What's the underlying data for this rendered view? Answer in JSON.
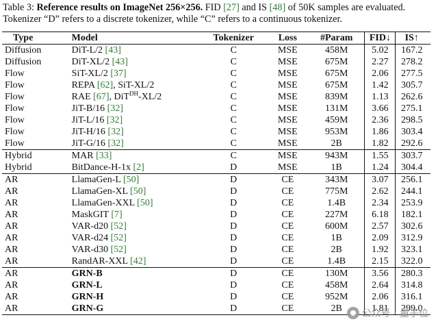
{
  "caption": {
    "label": "Table 3:",
    "bold_title": "Reference results on ImageNet 256×256.",
    "text_1": " FID ",
    "ref_fid": "[27]",
    "text_2": " and IS ",
    "ref_is": "[48]",
    "text_3": " of 50K samples are evaluated. Tokenizer “D” refers to a discrete tokenizer, while “C” refers to a continuous tokenizer."
  },
  "table": {
    "headers": {
      "type": "Type",
      "model": "Model",
      "tokenizer": "Tokenizer",
      "loss": "Loss",
      "param": "#Param",
      "fid": "FID↓",
      "is": "IS↑"
    },
    "rows": [
      {
        "type": "Diffusion",
        "model": "DiT-L/2 ",
        "ref": "[43]",
        "tokenizer": "C",
        "loss": "MSE",
        "param": "458M",
        "fid": "5.02",
        "is": "167.2",
        "group_start": true
      },
      {
        "type": "Diffusion",
        "model": "DiT-XL/2 ",
        "ref": "[43]",
        "tokenizer": "C",
        "loss": "MSE",
        "param": "675M",
        "fid": "2.27",
        "is": "278.2"
      },
      {
        "type": "Flow",
        "model": "SiT-XL/2 ",
        "ref": "[37]",
        "tokenizer": "C",
        "loss": "MSE",
        "param": "675M",
        "fid": "2.06",
        "is": "277.5"
      },
      {
        "type": "Flow",
        "model": "REPA ",
        "ref": "[62]",
        "model_suffix": ", SiT-XL/2",
        "tokenizer": "C",
        "loss": "MSE",
        "param": "675M",
        "fid": "1.42",
        "is": "305.7"
      },
      {
        "type": "Flow",
        "model": "RAE ",
        "ref": "[67]",
        "model_suffix": ", DiT",
        "sup": "DH",
        "model_suffix2": "-XL/2",
        "tokenizer": "C",
        "loss": "MSE",
        "param": "839M",
        "fid": "1.13",
        "is": "262.6"
      },
      {
        "type": "Flow",
        "model": "JiT-B/16 ",
        "ref": "[32]",
        "tokenizer": "C",
        "loss": "MSE",
        "param": "131M",
        "fid": "3.66",
        "is": "275.1"
      },
      {
        "type": "Flow",
        "model": "JiT-L/16 ",
        "ref": "[32]",
        "tokenizer": "C",
        "loss": "MSE",
        "param": "459M",
        "fid": "2.36",
        "is": "298.5"
      },
      {
        "type": "Flow",
        "model": "JiT-H/16 ",
        "ref": "[32]",
        "tokenizer": "C",
        "loss": "MSE",
        "param": "953M",
        "fid": "1.86",
        "is": "303.4"
      },
      {
        "type": "Flow",
        "model": "JiT-G/16 ",
        "ref": "[32]",
        "tokenizer": "C",
        "loss": "MSE",
        "param": "2B",
        "fid": "1.82",
        "is": "292.6"
      },
      {
        "type": "Hybrid",
        "model": "MAR ",
        "ref": "[33]",
        "tokenizer": "C",
        "loss": "MSE",
        "param": "943M",
        "fid": "1.55",
        "is": "303.7",
        "group_start": true
      },
      {
        "type": "Hybrid",
        "model": "BitDance-H-1x ",
        "ref": "[2]",
        "tokenizer": "D",
        "loss": "MSE",
        "param": "1B",
        "fid": "1.24",
        "is": "304.4"
      },
      {
        "type": "AR",
        "model": "LlamaGen-L ",
        "ref": "[50]",
        "tokenizer": "D",
        "loss": "CE",
        "param": "343M",
        "fid": "3.07",
        "is": "256.1",
        "group_start": true
      },
      {
        "type": "AR",
        "model": "LlamaGen-XL ",
        "ref": "[50]",
        "tokenizer": "D",
        "loss": "CE",
        "param": "775M",
        "fid": "2.62",
        "is": "244.1"
      },
      {
        "type": "AR",
        "model": "LlamaGen-XXL ",
        "ref": "[50]",
        "tokenizer": "D",
        "loss": "CE",
        "param": "1.4B",
        "fid": "2.34",
        "is": "253.9"
      },
      {
        "type": "AR",
        "model": "MaskGIT ",
        "ref": "[7]",
        "tokenizer": "D",
        "loss": "CE",
        "param": "227M",
        "fid": "6.18",
        "is": "182.1"
      },
      {
        "type": "AR",
        "model": "VAR-d20 ",
        "ref": "[52]",
        "tokenizer": "D",
        "loss": "CE",
        "param": "600M",
        "fid": "2.57",
        "is": "302.6"
      },
      {
        "type": "AR",
        "model": "VAR-d24 ",
        "ref": "[52]",
        "tokenizer": "D",
        "loss": "CE",
        "param": "1B",
        "fid": "2.09",
        "is": "312.9"
      },
      {
        "type": "AR",
        "model": "VAR-d30 ",
        "ref": "[52]",
        "tokenizer": "D",
        "loss": "CE",
        "param": "2B",
        "fid": "1.92",
        "is": "323.1"
      },
      {
        "type": "AR",
        "model": "RandAR-XXL ",
        "ref": "[42]",
        "tokenizer": "D",
        "loss": "CE",
        "param": "1.4B",
        "fid": "2.15",
        "is": "322.0"
      },
      {
        "type": "AR",
        "model": "GRN-B",
        "bold": true,
        "tokenizer": "D",
        "loss": "CE",
        "param": "130M",
        "fid": "3.56",
        "is": "280.3",
        "group_start": true
      },
      {
        "type": "AR",
        "model": "GRN-L",
        "bold": true,
        "tokenizer": "D",
        "loss": "CE",
        "param": "458M",
        "fid": "2.64",
        "is": "314.8"
      },
      {
        "type": "AR",
        "model": "GRN-H",
        "bold": true,
        "tokenizer": "D",
        "loss": "CE",
        "param": "952M",
        "fid": "2.06",
        "is": "316.1"
      },
      {
        "type": "AR",
        "model": "GRN-G",
        "bold": true,
        "tokenizer": "D",
        "loss": "CE",
        "param": "2B",
        "fid": "1.81",
        "is": "299.0"
      }
    ]
  },
  "watermark": {
    "icon": "wechat-account-icon",
    "text": "公众号 · 量子位"
  }
}
